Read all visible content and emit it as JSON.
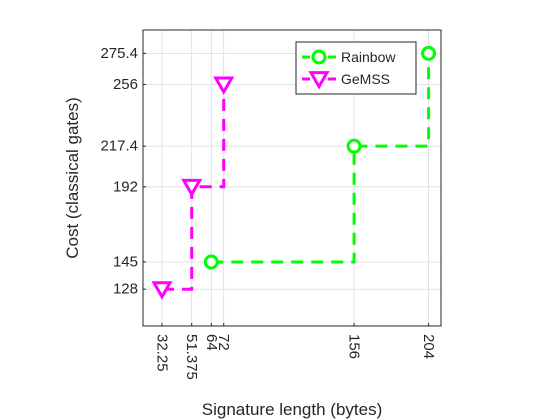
{
  "chart_data": {
    "type": "line",
    "xlabel": "Signature length (bytes)",
    "ylabel": "Cost (classical gates)",
    "xlim": [
      20,
      212
    ],
    "ylim": [
      105,
      290
    ],
    "xticks": [
      {
        "value": 32.25,
        "label": "32.25"
      },
      {
        "value": 51.375,
        "label": "51.375"
      },
      {
        "value": 64,
        "label": "64"
      },
      {
        "value": 72,
        "label": "72"
      },
      {
        "value": 156,
        "label": "156"
      },
      {
        "value": 204,
        "label": "204"
      }
    ],
    "yticks": [
      {
        "value": 128,
        "label": "128"
      },
      {
        "value": 145,
        "label": "145"
      },
      {
        "value": 192,
        "label": "192"
      },
      {
        "value": 217.4,
        "label": "217.4"
      },
      {
        "value": 256,
        "label": "256"
      },
      {
        "value": 275.4,
        "label": "275.4"
      }
    ],
    "grid": true,
    "legend_position": "top-right",
    "series": [
      {
        "name": "Rainbow",
        "color": "#00ff00",
        "line_style": "dashed",
        "marker": "circle",
        "step": "post",
        "points": [
          {
            "x": 64,
            "y": 145
          },
          {
            "x": 156,
            "y": 217.4
          },
          {
            "x": 204,
            "y": 275.4
          }
        ]
      },
      {
        "name": "GeMSS",
        "color": "#ff00ff",
        "line_style": "dashed",
        "marker": "triangle-down",
        "step": "post",
        "points": [
          {
            "x": 32.25,
            "y": 128
          },
          {
            "x": 51.375,
            "y": 192
          },
          {
            "x": 72,
            "y": 256
          }
        ]
      }
    ]
  }
}
